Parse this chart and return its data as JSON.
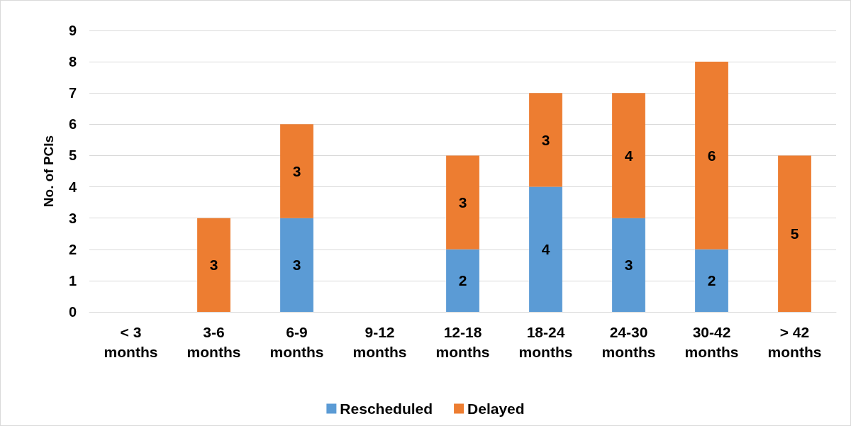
{
  "chart_data": {
    "type": "bar",
    "stacked": true,
    "ylabel": "No. of PCIs",
    "categories": [
      "< 3 months",
      "3-6 months",
      "6-9 months",
      "9-12 months",
      "12-18 months",
      "18-24 months",
      "24-30 months",
      "30-42 months",
      "> 42 months"
    ],
    "series": [
      {
        "name": "Rescheduled",
        "color": "#5b9bd5",
        "values": [
          0,
          0,
          3,
          0,
          2,
          4,
          3,
          2,
          0
        ],
        "value_labels": [
          null,
          null,
          "3",
          null,
          "2",
          "4",
          "3",
          "2",
          null
        ]
      },
      {
        "name": "Delayed",
        "color": "#ed7d31",
        "values": [
          0,
          3,
          3,
          0,
          3,
          3,
          4,
          6,
          5
        ],
        "value_labels": [
          null,
          "3",
          "3",
          null,
          "3",
          "3",
          "4",
          "6",
          "5"
        ]
      }
    ],
    "ylim": [
      0,
      9
    ],
    "yticks": [
      0,
      1,
      2,
      3,
      4,
      5,
      6,
      7,
      8,
      9
    ],
    "grid": "y",
    "legend": "bottom"
  }
}
